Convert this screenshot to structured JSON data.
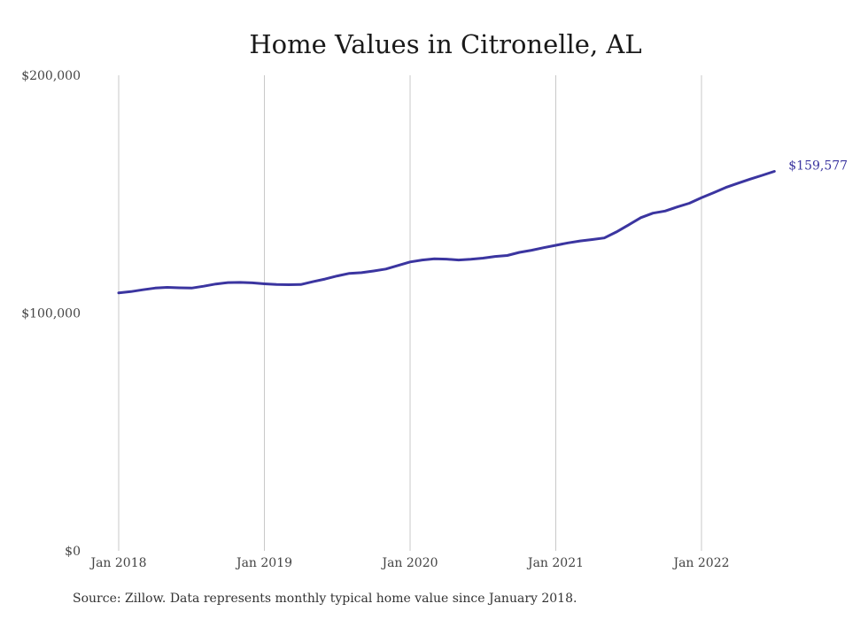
{
  "colors": {
    "series": "#3b35a0",
    "grid": "#c8c8c8"
  },
  "source_note": "Source: Zillow. Data represents monthly typical home value since January 2018.",
  "chart_data": {
    "type": "line",
    "title": "Home Values in Citronelle, AL",
    "xlabel": "",
    "ylabel": "",
    "ylim": [
      0,
      200000
    ],
    "y_ticks": [
      {
        "value": 0,
        "label": "$0"
      },
      {
        "value": 100000,
        "label": "$100,000"
      },
      {
        "value": 200000,
        "label": "$200,000"
      }
    ],
    "x_ticks": [
      {
        "value": "2018-01",
        "label": "Jan 2018"
      },
      {
        "value": "2019-01",
        "label": "Jan 2019"
      },
      {
        "value": "2020-01",
        "label": "Jan 2020"
      },
      {
        "value": "2021-01",
        "label": "Jan 2021"
      },
      {
        "value": "2022-01",
        "label": "Jan 2022"
      }
    ],
    "grid": {
      "vertical": true,
      "horizontal": false
    },
    "end_label": "$159,577",
    "series": [
      {
        "x": [
          "2018-01",
          "2018-02",
          "2018-03",
          "2018-04",
          "2018-05",
          "2018-06",
          "2018-07",
          "2018-08",
          "2018-09",
          "2018-10",
          "2018-11",
          "2018-12",
          "2019-01",
          "2019-02",
          "2019-03",
          "2019-04",
          "2019-05",
          "2019-06",
          "2019-07",
          "2019-08",
          "2019-09",
          "2019-10",
          "2019-11",
          "2019-12",
          "2020-01",
          "2020-02",
          "2020-03",
          "2020-04",
          "2020-05",
          "2020-06",
          "2020-07",
          "2020-08",
          "2020-09",
          "2020-10",
          "2020-11",
          "2020-12",
          "2021-01",
          "2021-02",
          "2021-03",
          "2021-04",
          "2021-05",
          "2021-06",
          "2021-07",
          "2021-08",
          "2021-09",
          "2021-10",
          "2021-11",
          "2021-12",
          "2022-01",
          "2022-02",
          "2022-03",
          "2022-04",
          "2022-05",
          "2022-06",
          "2022-07"
        ],
        "values": [
          108500,
          109000,
          109800,
          110500,
          110800,
          110600,
          110500,
          111300,
          112200,
          112800,
          112900,
          112700,
          112300,
          112000,
          111900,
          112000,
          113200,
          114300,
          115600,
          116700,
          117000,
          117700,
          118500,
          120000,
          121500,
          122300,
          122800,
          122700,
          122300,
          122600,
          123100,
          123800,
          124200,
          125500,
          126400,
          127500,
          128500,
          129500,
          130300,
          130900,
          131600,
          134100,
          137100,
          140100,
          142000,
          142900,
          144600,
          146200,
          148500,
          150600,
          152800,
          154600,
          156300,
          157900,
          159577
        ]
      }
    ]
  }
}
